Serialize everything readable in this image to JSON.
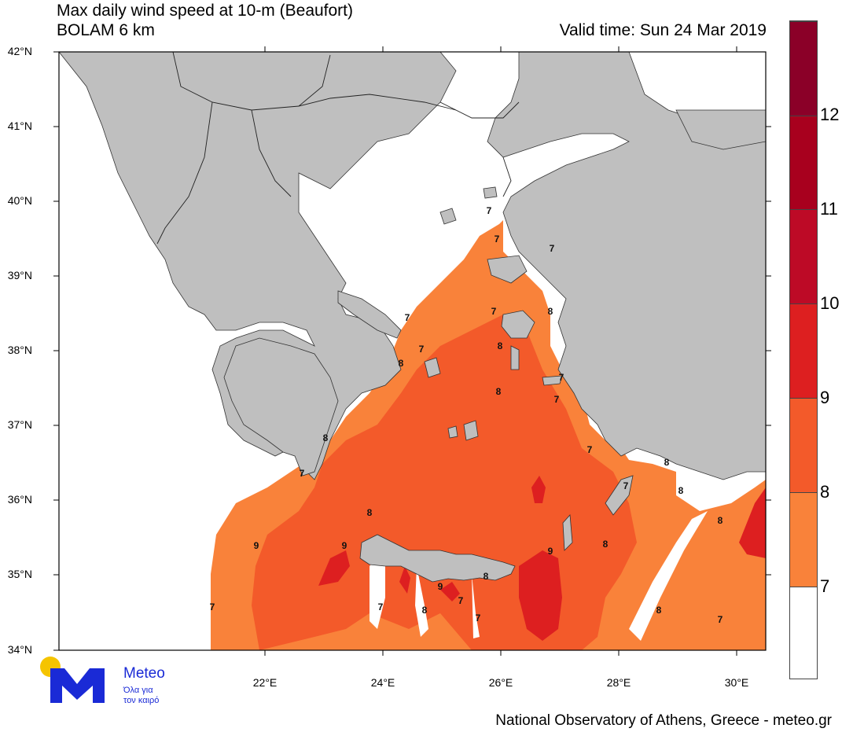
{
  "header": {
    "title_line1": "Max daily wind speed at 10-m (Beaufort)",
    "title_line2": "BOLAM 6 km",
    "valid_time": "Valid time: Sun 24 Mar 2019"
  },
  "axes": {
    "lat_labels": [
      "42°N",
      "41°N",
      "40°N",
      "39°N",
      "38°N",
      "37°N",
      "36°N",
      "35°N",
      "34°N"
    ],
    "lon_labels": [
      "22°E",
      "24°E",
      "26°E",
      "28°E",
      "30°E"
    ]
  },
  "colorbar": {
    "labels": [
      "12",
      "11",
      "10",
      "9",
      "8",
      "7"
    ],
    "colors": [
      "#ffffff",
      "#f9823a",
      "#f35a2a",
      "#dd1f20",
      "#bd0a26",
      "#a8001e",
      "#8b0028"
    ]
  },
  "colors": {
    "land": "#bfbfbf",
    "sea_calm": "#ffffff",
    "beaufort_7": "#f9823a",
    "beaufort_8": "#f35a2a",
    "beaufort_9": "#dd1f20"
  },
  "contour_labels": [
    "7",
    "7",
    "7",
    "7",
    "7",
    "8",
    "7",
    "8",
    "8",
    "7",
    "8",
    "7",
    "7",
    "8",
    "8",
    "7",
    "7",
    "8",
    "8",
    "9",
    "8",
    "9",
    "9",
    "8",
    "8",
    "9",
    "7",
    "7",
    "8",
    "7",
    "7",
    "8",
    "7"
  ],
  "logo": {
    "name": "Meteo",
    "tagline_1": "Όλα για",
    "tagline_2": "τον καιρό"
  },
  "footer": {
    "credit": "National Observatory of Athens, Greece - meteo.gr"
  }
}
